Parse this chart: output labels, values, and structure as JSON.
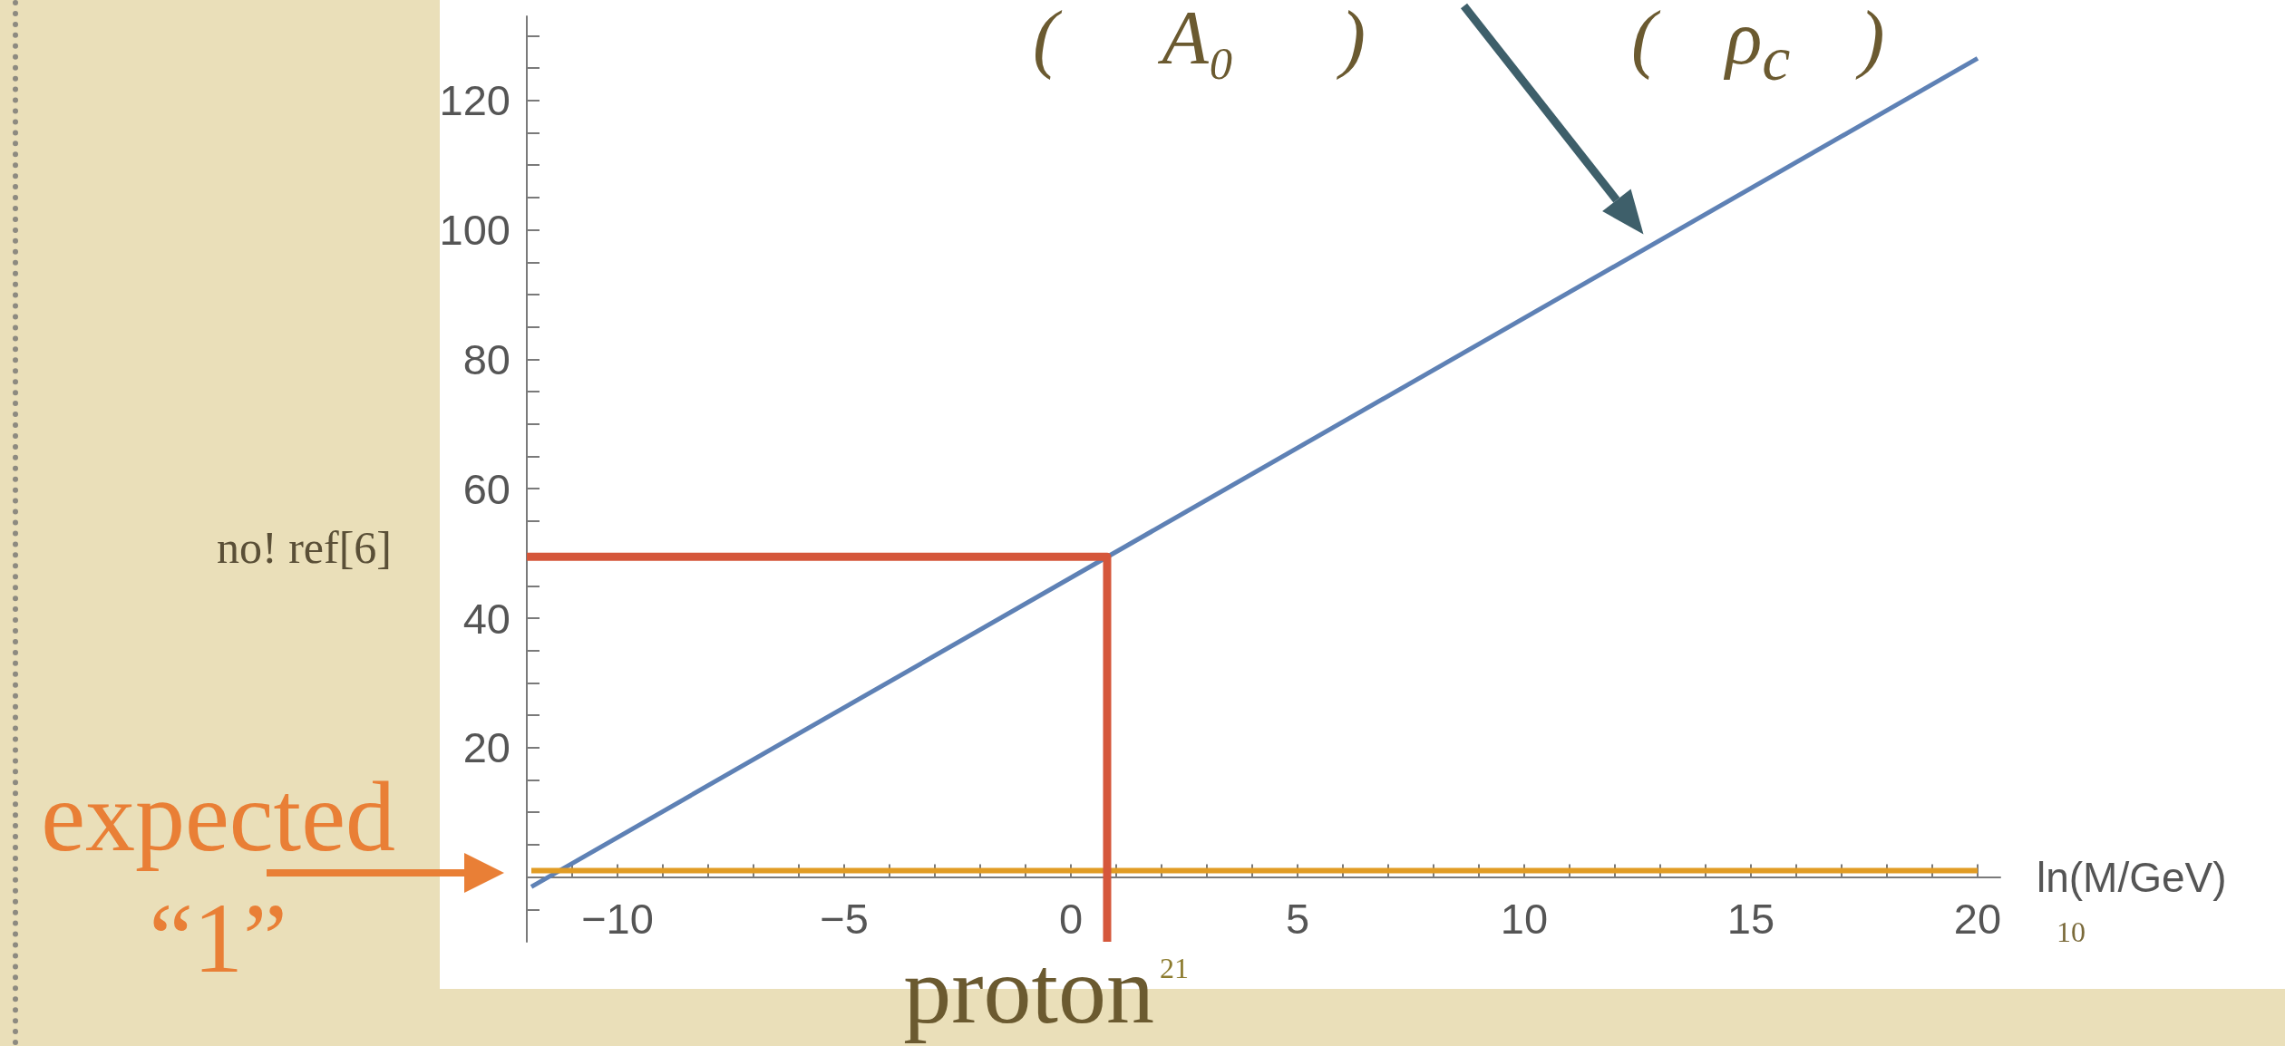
{
  "chart_data": {
    "type": "line",
    "xlabel": "ln(M/GeV)",
    "xlim": [
      -12,
      20.5
    ],
    "ylim": [
      -10,
      133
    ],
    "xticks": [
      {
        "value": -11,
        "label": null
      },
      {
        "value": -10,
        "label": "−10"
      },
      {
        "value": -9,
        "label": null
      },
      {
        "value": -8,
        "label": null
      },
      {
        "value": -7,
        "label": null
      },
      {
        "value": -6,
        "label": null
      },
      {
        "value": -5,
        "label": "−5"
      },
      {
        "value": -4,
        "label": null
      },
      {
        "value": -3,
        "label": null
      },
      {
        "value": -2,
        "label": null
      },
      {
        "value": -1,
        "label": null
      },
      0,
      {
        "value": 1,
        "label": null
      },
      {
        "value": 2,
        "label": null
      },
      {
        "value": 3,
        "label": null
      },
      {
        "value": 4,
        "label": null
      },
      5,
      {
        "value": 6,
        "label": null
      },
      {
        "value": 7,
        "label": null
      },
      {
        "value": 8,
        "label": null
      },
      {
        "value": 9,
        "label": null
      },
      10,
      {
        "value": 11,
        "label": null
      },
      {
        "value": 12,
        "label": null
      },
      {
        "value": 13,
        "label": null
      },
      {
        "value": 14,
        "label": null
      },
      15,
      {
        "value": 16,
        "label": null
      },
      {
        "value": 17,
        "label": null
      },
      {
        "value": 18,
        "label": null
      },
      {
        "value": 19,
        "label": null
      },
      20
    ],
    "yticks": [
      {
        "value": -5,
        "label": null
      },
      {
        "value": 0,
        "label": null
      },
      {
        "value": 5,
        "label": null
      },
      {
        "value": 10,
        "label": null
      },
      {
        "value": 15,
        "label": null
      },
      20,
      {
        "value": 25,
        "label": null
      },
      {
        "value": 30,
        "label": null
      },
      {
        "value": 35,
        "label": null
      },
      40,
      {
        "value": 45,
        "label": null
      },
      {
        "value": 50,
        "label": null
      },
      {
        "value": 55,
        "label": null
      },
      60,
      {
        "value": 65,
        "label": null
      },
      {
        "value": 70,
        "label": null
      },
      {
        "value": 75,
        "label": null
      },
      80,
      {
        "value": 85,
        "label": null
      },
      {
        "value": 90,
        "label": null
      },
      {
        "value": 95,
        "label": null
      },
      100,
      {
        "value": 105,
        "label": null
      },
      {
        "value": 110,
        "label": null
      },
      {
        "value": 115,
        "label": null
      },
      120,
      {
        "value": 125,
        "label": null
      },
      {
        "value": 130,
        "label": null
      }
    ],
    "series": [
      {
        "color": "#5e81b5",
        "x": [
          -11.9,
          20
        ],
        "values": [
          -1.5,
          126.5
        ]
      },
      {
        "color": "#e19c24",
        "x": [
          -11.9,
          20
        ],
        "values": [
          1,
          1
        ]
      },
      {
        "color": "#d5573b",
        "x": [
          -12,
          0.8,
          0.8
        ],
        "values": [
          49.5,
          49.5,
          -10
        ]
      }
    ],
    "annotations": [
      "no! ref[6]",
      "expected\n“1”",
      "proton",
      "21",
      "10",
      "( A₀ )",
      "( ρ$_{c}$ )"
    ],
    "marker": "none",
    "line_style": "solid"
  }
}
